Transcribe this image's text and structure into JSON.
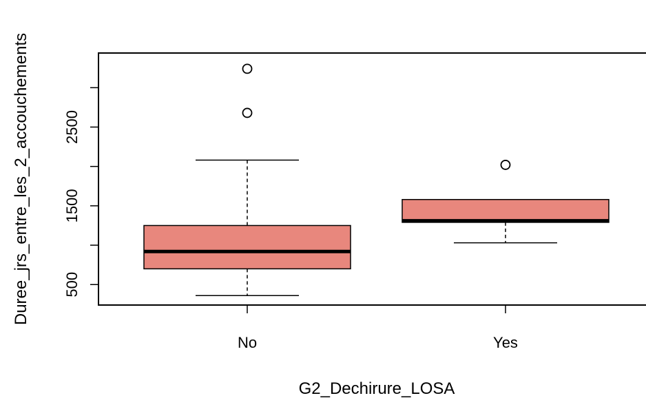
{
  "chart_data": {
    "type": "boxplot",
    "xlabel": "G2_Dechirure_LOSA",
    "ylabel": "Duree_jrs_entre_les_2_accouchements",
    "categories": [
      "No",
      "Yes"
    ],
    "yticks": [
      500,
      1000,
      1500,
      2000,
      2500,
      3000
    ],
    "ytick_labels": [
      "500",
      "",
      "1500",
      "",
      "2500",
      ""
    ],
    "ylim": [
      240,
      3440
    ],
    "box_color": "#e8877d",
    "series": [
      {
        "category": "No",
        "whisker_low": 360,
        "q1": 700,
        "median": 920,
        "q3": 1250,
        "whisker_high": 2080,
        "outliers": [
          2680,
          3240
        ]
      },
      {
        "category": "Yes",
        "whisker_low": 1030,
        "q1": 1290,
        "median": 1310,
        "q3": 1580,
        "whisker_high": 1580,
        "outliers": [
          2020
        ]
      }
    ]
  }
}
